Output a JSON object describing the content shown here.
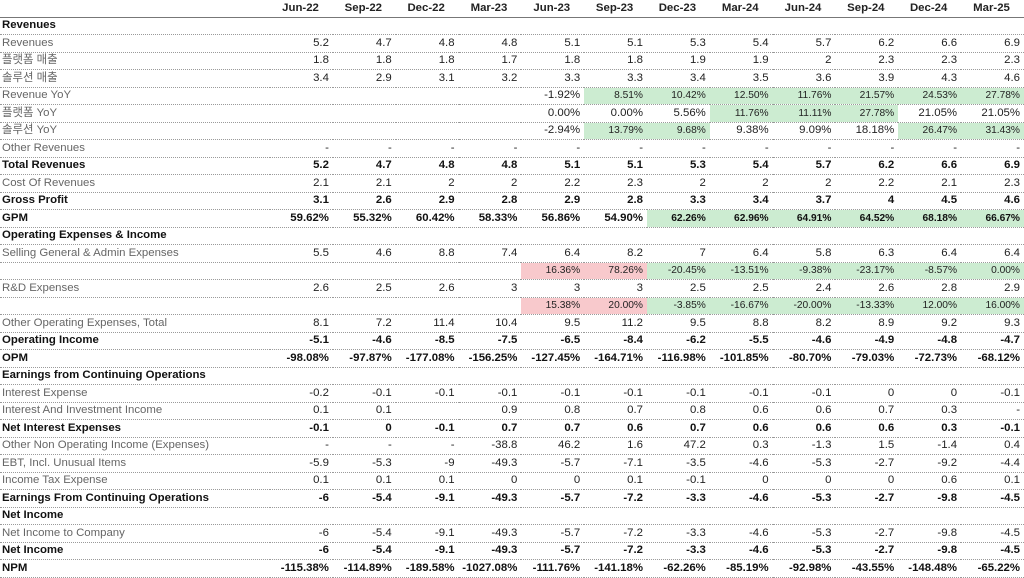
{
  "periods": [
    "Jun-22",
    "Sep-22",
    "Dec-22",
    "Mar-23",
    "Jun-23",
    "Sep-23",
    "Dec-23",
    "Mar-24",
    "Jun-24",
    "Sep-24",
    "Dec-24",
    "Mar-25"
  ],
  "rows": [
    {
      "type": "section",
      "label": "Revenues",
      "values": [
        "",
        "",
        "",
        "",
        "",
        "",
        "",
        "",
        "",
        "",
        "",
        ""
      ]
    },
    {
      "type": "normal",
      "label": "Revenues",
      "values": [
        "5.2",
        "4.7",
        "4.8",
        "4.8",
        "5.1",
        "5.1",
        "5.3",
        "5.4",
        "5.7",
        "6.2",
        "6.6",
        "6.9"
      ]
    },
    {
      "type": "normal",
      "label": "플랫폼 매출",
      "values": [
        "1.8",
        "1.8",
        "1.8",
        "1.7",
        "1.8",
        "1.8",
        "1.9",
        "1.9",
        "2",
        "2.3",
        "2.3",
        "2.3"
      ]
    },
    {
      "type": "normal",
      "label": "솔루션 매출",
      "values": [
        "3.4",
        "2.9",
        "3.1",
        "3.2",
        "3.3",
        "3.3",
        "3.4",
        "3.5",
        "3.6",
        "3.9",
        "4.3",
        "4.6"
      ]
    },
    {
      "type": "normal",
      "label": "Revenue YoY",
      "values": [
        "",
        "",
        "",
        "",
        "-1.92%",
        "8.51%",
        "10.42%",
        "12.50%",
        "11.76%",
        "21.57%",
        "24.53%",
        "27.78%"
      ],
      "hl": [
        "",
        "",
        "",
        "",
        "",
        "g",
        "g",
        "g",
        "g",
        "g",
        "g",
        "g"
      ]
    },
    {
      "type": "normal",
      "label": "플랫폼 YoY",
      "values": [
        "",
        "",
        "",
        "",
        "0.00%",
        "0.00%",
        "5.56%",
        "11.76%",
        "11.11%",
        "27.78%",
        "21.05%",
        "21.05%"
      ],
      "hl": [
        "",
        "",
        "",
        "",
        "",
        "",
        "",
        "g",
        "g",
        "g",
        "",
        ""
      ]
    },
    {
      "type": "normal",
      "label": "솔루션 YoY",
      "values": [
        "",
        "",
        "",
        "",
        "-2.94%",
        "13.79%",
        "9.68%",
        "9.38%",
        "9.09%",
        "18.18%",
        "26.47%",
        "31.43%"
      ],
      "hl": [
        "",
        "",
        "",
        "",
        "",
        "g",
        "g",
        "",
        "",
        "",
        "g",
        "g"
      ]
    },
    {
      "type": "normal",
      "label": "Other Revenues",
      "values": [
        "-",
        "-",
        "-",
        "-",
        "-",
        "-",
        "-",
        "-",
        "-",
        "-",
        "-",
        "-"
      ]
    },
    {
      "type": "bold",
      "label": "Total Revenues",
      "values": [
        "5.2",
        "4.7",
        "4.8",
        "4.8",
        "5.1",
        "5.1",
        "5.3",
        "5.4",
        "5.7",
        "6.2",
        "6.6",
        "6.9"
      ]
    },
    {
      "type": "normal",
      "label": "Cost Of Revenues",
      "values": [
        "2.1",
        "2.1",
        "2",
        "2",
        "2.2",
        "2.3",
        "2",
        "2",
        "2",
        "2.2",
        "2.1",
        "2.3"
      ]
    },
    {
      "type": "bold",
      "label": "Gross Profit",
      "values": [
        "3.1",
        "2.6",
        "2.9",
        "2.8",
        "2.9",
        "2.8",
        "3.3",
        "3.4",
        "3.7",
        "4",
        "4.5",
        "4.6"
      ]
    },
    {
      "type": "bold",
      "label": "GPM",
      "values": [
        "59.62%",
        "55.32%",
        "60.42%",
        "58.33%",
        "56.86%",
        "54.90%",
        "62.26%",
        "62.96%",
        "64.91%",
        "64.52%",
        "68.18%",
        "66.67%"
      ],
      "hl": [
        "",
        "",
        "",
        "",
        "",
        "",
        "g",
        "g",
        "g",
        "g",
        "g",
        "g"
      ],
      "sm": true
    },
    {
      "type": "section",
      "label": "Operating Expenses & Income",
      "values": [
        "",
        "",
        "",
        "",
        "",
        "",
        "",
        "",
        "",
        "",
        "",
        ""
      ]
    },
    {
      "type": "normal",
      "label": "Selling General & Admin Expenses",
      "values": [
        "5.5",
        "4.6",
        "8.8",
        "7.4",
        "6.4",
        "8.2",
        "7",
        "6.4",
        "5.8",
        "6.3",
        "6.4",
        "6.4"
      ]
    },
    {
      "type": "normal",
      "label": "",
      "values": [
        "",
        "",
        "",
        "",
        "16.36%",
        "78.26%",
        "-20.45%",
        "-13.51%",
        "-9.38%",
        "-23.17%",
        "-8.57%",
        "0.00%"
      ],
      "hl": [
        "",
        "",
        "",
        "",
        "r",
        "r",
        "g",
        "g",
        "g",
        "g",
        "g",
        "g"
      ]
    },
    {
      "type": "normal",
      "label": "R&D Expenses",
      "values": [
        "2.6",
        "2.5",
        "2.6",
        "3",
        "3",
        "3",
        "2.5",
        "2.5",
        "2.4",
        "2.6",
        "2.8",
        "2.9"
      ]
    },
    {
      "type": "normal",
      "label": "",
      "values": [
        "",
        "",
        "",
        "",
        "15.38%",
        "20.00%",
        "-3.85%",
        "-16.67%",
        "-20.00%",
        "-13.33%",
        "12.00%",
        "16.00%"
      ],
      "hl": [
        "",
        "",
        "",
        "",
        "r",
        "r",
        "g",
        "g",
        "g",
        "g",
        "g",
        "g"
      ]
    },
    {
      "type": "normal",
      "label": "Other Operating Expenses, Total",
      "values": [
        "8.1",
        "7.2",
        "11.4",
        "10.4",
        "9.5",
        "11.2",
        "9.5",
        "8.8",
        "8.2",
        "8.9",
        "9.2",
        "9.3"
      ]
    },
    {
      "type": "bold",
      "label": "Operating Income",
      "values": [
        "-5.1",
        "-4.6",
        "-8.5",
        "-7.5",
        "-6.5",
        "-8.4",
        "-6.2",
        "-5.5",
        "-4.6",
        "-4.9",
        "-4.8",
        "-4.7"
      ]
    },
    {
      "type": "bold",
      "label": "OPM",
      "values": [
        "-98.08%",
        "-97.87%",
        "-177.08%",
        "-156.25%",
        "-127.45%",
        "-164.71%",
        "-116.98%",
        "-101.85%",
        "-80.70%",
        "-79.03%",
        "-72.73%",
        "-68.12%"
      ]
    },
    {
      "type": "section",
      "label": "Earnings from Continuing Operations",
      "values": [
        "",
        "",
        "",
        "",
        "",
        "",
        "",
        "",
        "",
        "",
        "",
        ""
      ]
    },
    {
      "type": "normal",
      "label": "Interest Expense",
      "values": [
        "-0.2",
        "-0.1",
        "-0.1",
        "-0.1",
        "-0.1",
        "-0.1",
        "-0.1",
        "-0.1",
        "-0.1",
        "0",
        "0",
        "-0.1"
      ]
    },
    {
      "type": "normal",
      "label": "Interest And Investment Income",
      "values": [
        "0.1",
        "0.1",
        "",
        "0.9",
        "0.8",
        "0.7",
        "0.8",
        "0.6",
        "0.6",
        "0.7",
        "0.3",
        "-"
      ]
    },
    {
      "type": "bold",
      "label": "Net Interest Expenses",
      "values": [
        "-0.1",
        "0",
        "-0.1",
        "0.7",
        "0.7",
        "0.6",
        "0.7",
        "0.6",
        "0.6",
        "0.6",
        "0.3",
        "-0.1"
      ]
    },
    {
      "type": "normal",
      "label": "Other Non Operating Income (Expenses)",
      "values": [
        "-",
        "-",
        "-",
        "-38.8",
        "46.2",
        "1.6",
        "47.2",
        "0.3",
        "-1.3",
        "1.5",
        "-1.4",
        "0.4"
      ]
    },
    {
      "type": "normal",
      "label": "EBT, Incl. Unusual Items",
      "values": [
        "-5.9",
        "-5.3",
        "-9",
        "-49.3",
        "-5.7",
        "-7.1",
        "-3.5",
        "-4.6",
        "-5.3",
        "-2.7",
        "-9.2",
        "-4.4"
      ]
    },
    {
      "type": "normal",
      "label": "Income Tax Expense",
      "values": [
        "0.1",
        "0.1",
        "0.1",
        "0",
        "0",
        "0.1",
        "-0.1",
        "0",
        "0",
        "0",
        "0.6",
        "0.1"
      ]
    },
    {
      "type": "bold",
      "label": "Earnings From Continuing Operations",
      "values": [
        "-6",
        "-5.4",
        "-9.1",
        "-49.3",
        "-5.7",
        "-7.2",
        "-3.3",
        "-4.6",
        "-5.3",
        "-2.7",
        "-9.8",
        "-4.5"
      ]
    },
    {
      "type": "section",
      "label": "Net Income",
      "values": [
        "",
        "",
        "",
        "",
        "",
        "",
        "",
        "",
        "",
        "",
        "",
        ""
      ]
    },
    {
      "type": "normal",
      "label": "Net Income to Company",
      "values": [
        "-6",
        "-5.4",
        "-9.1",
        "-49.3",
        "-5.7",
        "-7.2",
        "-3.3",
        "-4.6",
        "-5.3",
        "-2.7",
        "-9.8",
        "-4.5"
      ]
    },
    {
      "type": "bold",
      "label": "Net Income",
      "values": [
        "-6",
        "-5.4",
        "-9.1",
        "-49.3",
        "-5.7",
        "-7.2",
        "-3.3",
        "-4.6",
        "-5.3",
        "-2.7",
        "-9.8",
        "-4.5"
      ]
    },
    {
      "type": "bold",
      "label": "NPM",
      "values": [
        "-115.38%",
        "-114.89%",
        "-189.58%",
        "-1027.08%",
        "-111.76%",
        "-141.18%",
        "-62.26%",
        "-85.19%",
        "-92.98%",
        "-43.55%",
        "-148.48%",
        "-65.22%"
      ]
    }
  ],
  "colors": {
    "positive_highlight": "#ccecd1",
    "negative_highlight": "#f8c9cc"
  }
}
